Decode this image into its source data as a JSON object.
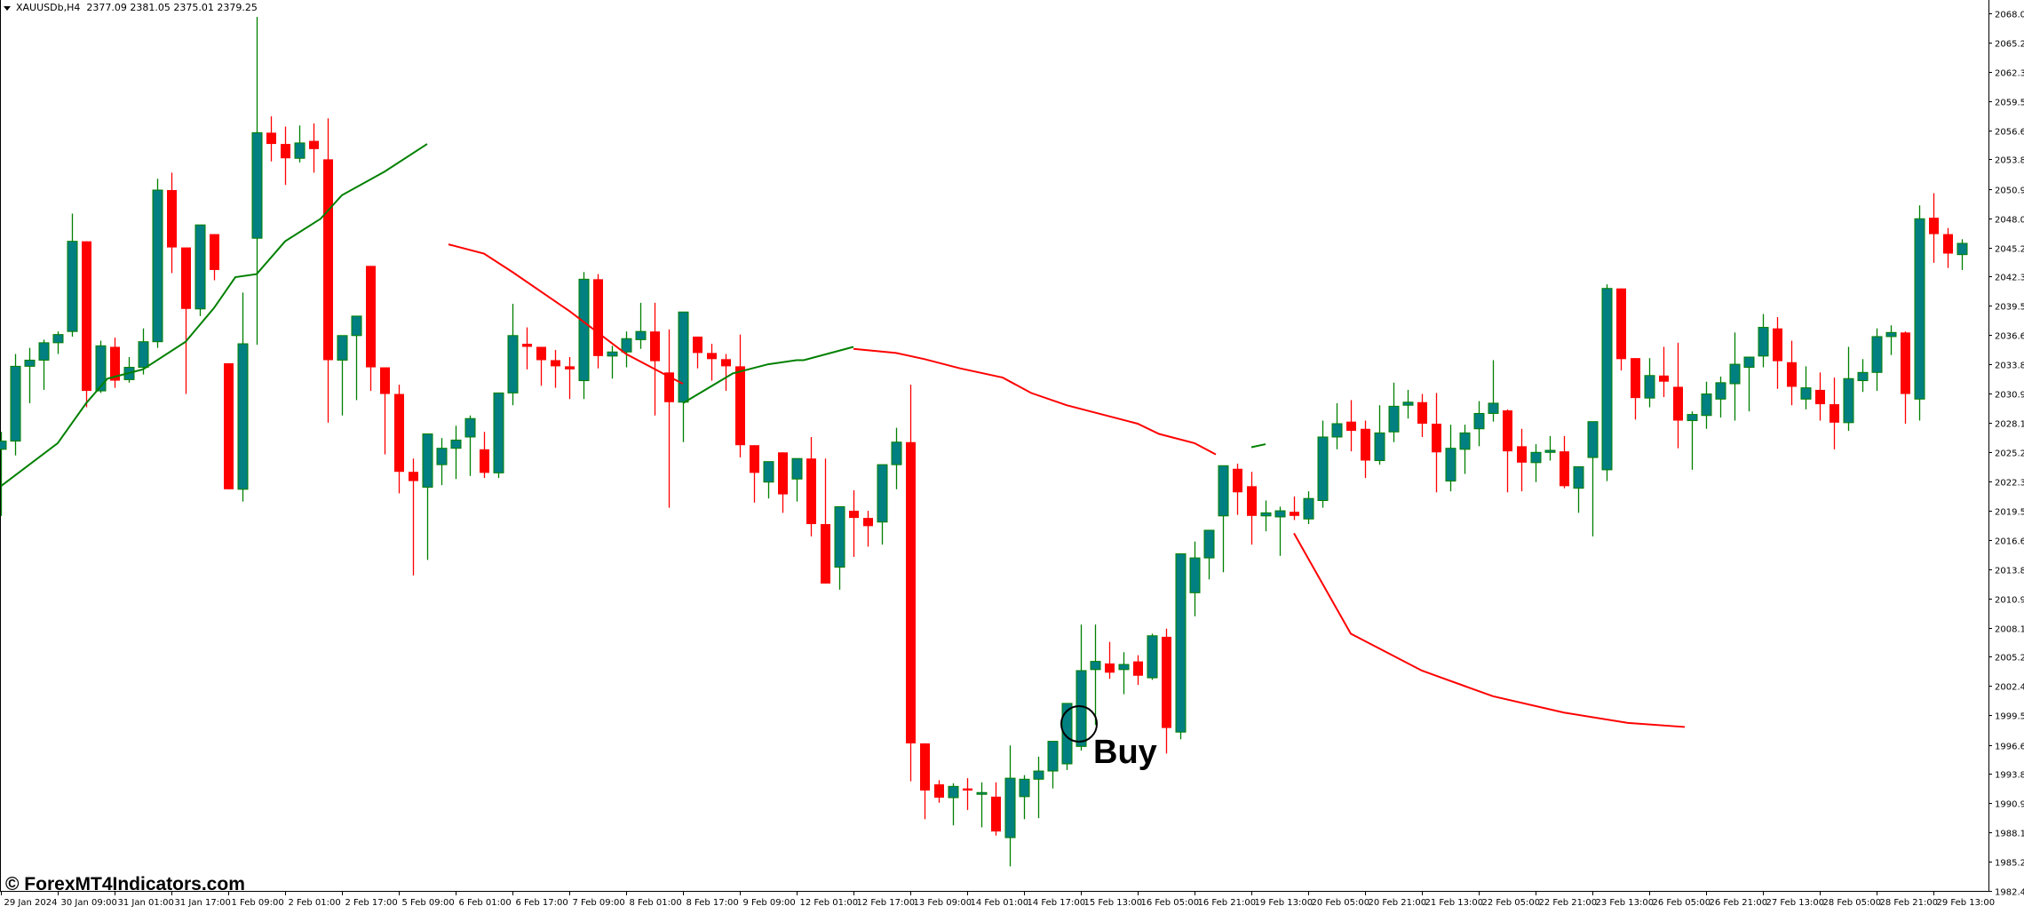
{
  "header": {
    "symbol": "XAUUSDb,H4",
    "ohlc": "2377.09 2381.05 2375.01 2379.25"
  },
  "watermark": "© ForexMT4Indicators.com",
  "annotation": {
    "label": "Buy",
    "circle_candle_index": 76
  },
  "colors": {
    "bull_body": "#008080",
    "bull_outline": "#008000",
    "bear": "#ff0000",
    "ma_up": "#008000",
    "ma_down": "#ff0000",
    "axis": "#000000",
    "background": "#ffffff"
  },
  "chart_data": {
    "type": "candlestick",
    "title": "XAUUSDb,H4",
    "xlabel": "",
    "ylabel": "",
    "ylim": [
      1982.4,
      2068.05
    ],
    "y_ticks": [
      "2068.05",
      "2065.20",
      "2062.35",
      "2059.50",
      "2056.65",
      "2053.80",
      "2050.90",
      "2048.05",
      "2045.20",
      "2042.35",
      "2039.50",
      "2036.65",
      "2033.80",
      "2030.95",
      "2028.10",
      "2025.25",
      "2022.35",
      "2019.50",
      "2016.65",
      "2013.80",
      "2010.95",
      "2008.10",
      "2005.25",
      "2002.40",
      "1999.55",
      "1996.65",
      "1993.80",
      "1990.95",
      "1988.10",
      "1985.25",
      "1982.40"
    ],
    "x_ticks": [
      "29 Jan 2024",
      "30 Jan 09:00",
      "31 Jan 01:00",
      "31 Jan 17:00",
      "1 Feb 09:00",
      "2 Feb 01:00",
      "2 Feb 17:00",
      "5 Feb 09:00",
      "6 Feb 01:00",
      "6 Feb 17:00",
      "7 Feb 09:00",
      "8 Feb 01:00",
      "8 Feb 17:00",
      "9 Feb 09:00",
      "12 Feb 01:00",
      "12 Feb 17:00",
      "13 Feb 09:00",
      "14 Feb 01:00",
      "14 Feb 17:00",
      "15 Feb 13:00",
      "16 Feb 05:00",
      "16 Feb 21:00",
      "19 Feb 13:00",
      "20 Feb 05:00",
      "20 Feb 21:00",
      "21 Feb 13:00",
      "22 Feb 05:00",
      "22 Feb 21:00",
      "23 Feb 13:00",
      "26 Feb 05:00",
      "26 Feb 21:00",
      "27 Feb 13:00",
      "28 Feb 05:00",
      "28 Feb 21:00",
      "29 Feb 13:00"
    ],
    "x_tick_positions": [
      0,
      8,
      16,
      24,
      32,
      40,
      48,
      56,
      64,
      72,
      80,
      88,
      96,
      104,
      112,
      120,
      128,
      136,
      144,
      152,
      160,
      168,
      176,
      184,
      192,
      200,
      208,
      216,
      224,
      232,
      240,
      248,
      256,
      264,
      272
    ],
    "legend": [],
    "grid": false,
    "candles_ohlc": [
      [
        2025.5,
        2027.2,
        2019.0,
        2026.3
      ],
      [
        2026.3,
        2034.8,
        2024.9,
        2033.6
      ],
      [
        2033.6,
        2035.4,
        2030.0,
        2034.2
      ],
      [
        2034.2,
        2036.2,
        2031.3,
        2035.9
      ],
      [
        2035.9,
        2037.0,
        2034.8,
        2036.7
      ],
      [
        2037.0,
        2048.5,
        2036.5,
        2045.8
      ],
      [
        2045.8,
        2045.5,
        2029.6,
        2031.2
      ],
      [
        2031.2,
        2036.1,
        2031.0,
        2035.6
      ],
      [
        2035.5,
        2036.4,
        2031.5,
        2032.2
      ],
      [
        2032.3,
        2034.5,
        2032.0,
        2033.5
      ],
      [
        2033.5,
        2037.3,
        2032.8,
        2036.0
      ],
      [
        2036.0,
        2051.9,
        2035.4,
        2050.8
      ],
      [
        2050.8,
        2052.5,
        2042.7,
        2045.2
      ],
      [
        2045.2,
        2044.4,
        2030.9,
        2039.2
      ],
      [
        2039.2,
        2046.5,
        2038.5,
        2047.4
      ],
      [
        2046.5,
        2044.9,
        2042.0,
        2043.0
      ],
      [
        2033.9,
        2033.5,
        2022.7,
        2021.6
      ],
      [
        2021.6,
        2040.8,
        2020.4,
        2035.8
      ],
      [
        2046.1,
        2067.7,
        2035.7,
        2056.4
      ],
      [
        2056.4,
        2058.0,
        2053.6,
        2055.3
      ],
      [
        2055.3,
        2057.0,
        2051.3,
        2053.9
      ],
      [
        2053.9,
        2057.1,
        2053.5,
        2055.4
      ],
      [
        2055.6,
        2057.3,
        2052.5,
        2054.8
      ],
      [
        2053.8,
        2057.8,
        2028.1,
        2034.2
      ],
      [
        2034.2,
        2035.1,
        2028.8,
        2036.6
      ],
      [
        2036.6,
        2037.6,
        2030.3,
        2038.5
      ],
      [
        2043.4,
        2042.6,
        2031.2,
        2033.5
      ],
      [
        2033.5,
        2033.5,
        2025.0,
        2030.9
      ],
      [
        2030.9,
        2031.8,
        2021.2,
        2023.3
      ],
      [
        2023.3,
        2024.6,
        2013.2,
        2022.4
      ],
      [
        2021.8,
        2023.8,
        2014.7,
        2027.0
      ],
      [
        2024.0,
        2026.6,
        2022.0,
        2025.6
      ],
      [
        2025.6,
        2027.8,
        2022.6,
        2026.4
      ],
      [
        2026.7,
        2028.8,
        2022.9,
        2028.5
      ],
      [
        2025.5,
        2027.2,
        2022.7,
        2023.2
      ],
      [
        2023.2,
        2027.3,
        2022.7,
        2031.0
      ],
      [
        2031.0,
        2039.7,
        2029.8,
        2036.6
      ],
      [
        2035.8,
        2037.4,
        2033.3,
        2035.5
      ],
      [
        2035.5,
        2035.2,
        2031.7,
        2034.2
      ],
      [
        2034.2,
        2035.2,
        2031.5,
        2033.6
      ],
      [
        2033.6,
        2034.5,
        2030.4,
        2033.3
      ],
      [
        2032.2,
        2042.8,
        2030.4,
        2042.1
      ],
      [
        2042.1,
        2042.6,
        2033.4,
        2034.6
      ],
      [
        2034.6,
        2035.6,
        2032.4,
        2035.0
      ],
      [
        2035.0,
        2037.0,
        2033.5,
        2036.3
      ],
      [
        2036.2,
        2039.8,
        2035.3,
        2037.0
      ],
      [
        2037.0,
        2039.8,
        2028.8,
        2034.1
      ],
      [
        2033.0,
        2037.2,
        2019.8,
        2030.1
      ],
      [
        2030.1,
        2034.9,
        2026.2,
        2038.9
      ],
      [
        2036.5,
        2036.1,
        2033.4,
        2034.9
      ],
      [
        2034.9,
        2035.8,
        2032.2,
        2034.3
      ],
      [
        2034.3,
        2034.8,
        2031.2,
        2033.6
      ],
      [
        2033.6,
        2036.7,
        2024.7,
        2025.9
      ],
      [
        2025.9,
        2025.8,
        2020.3,
        2023.2
      ],
      [
        2022.3,
        2023.5,
        2020.7,
        2024.3
      ],
      [
        2025.2,
        2025.1,
        2019.3,
        2021.1
      ],
      [
        2022.6,
        2024.1,
        2020.4,
        2024.6
      ],
      [
        2024.6,
        2026.7,
        2017.0,
        2018.2
      ],
      [
        2018.2,
        2024.6,
        2013.6,
        2012.4
      ],
      [
        2014.0,
        2019.7,
        2011.8,
        2019.9
      ],
      [
        2019.5,
        2021.5,
        2015.0,
        2018.8
      ],
      [
        2018.8,
        2019.5,
        2016.0,
        2018.0
      ],
      [
        2018.4,
        2023.0,
        2016.2,
        2024.0
      ],
      [
        2024.0,
        2027.6,
        2021.6,
        2026.2
      ],
      [
        2026.2,
        2031.8,
        1993.1,
        1996.8
      ],
      [
        1996.8,
        1994.7,
        1989.4,
        1992.2
      ],
      [
        1992.8,
        1993.2,
        1991.0,
        1991.5
      ],
      [
        1991.5,
        1992.9,
        1988.8,
        1992.6
      ],
      [
        1992.4,
        1993.4,
        1990.3,
        1992.2
      ],
      [
        1992.0,
        1993.0,
        1988.6,
        1992.0
      ],
      [
        1991.6,
        1993.0,
        1987.8,
        1988.2
      ],
      [
        1987.6,
        1996.6,
        1984.8,
        1993.4
      ],
      [
        1991.6,
        1993.7,
        1989.4,
        1993.3
      ],
      [
        1993.3,
        1995.5,
        1989.5,
        1994.1
      ],
      [
        1994.1,
        1996.2,
        1992.4,
        1997.0
      ],
      [
        1994.8,
        1998.1,
        1994.2,
        2000.7
      ],
      [
        1996.5,
        2008.4,
        1996.1,
        2003.9
      ],
      [
        2004.0,
        2008.4,
        1998.6,
        2004.8
      ],
      [
        2004.6,
        2006.7,
        2003.1,
        2003.7
      ],
      [
        2004.0,
        2005.7,
        2001.6,
        2004.5
      ],
      [
        2004.8,
        2005.4,
        2002.5,
        2003.4
      ],
      [
        2003.2,
        2007.5,
        2003.0,
        2007.3
      ],
      [
        2007.2,
        2008.0,
        1995.8,
        1998.3
      ],
      [
        1997.9,
        2009.1,
        1997.2,
        2015.3
      ],
      [
        2011.5,
        2016.5,
        2009.2,
        2014.9
      ],
      [
        2014.9,
        2015.0,
        2012.8,
        2017.6
      ],
      [
        2019.0,
        2023.7,
        2013.5,
        2023.9
      ],
      [
        2023.6,
        2024.1,
        2019.1,
        2021.3
      ],
      [
        2021.9,
        2023.3,
        2016.2,
        2019.0
      ],
      [
        2019.0,
        2020.5,
        2017.5,
        2019.3
      ],
      [
        2018.9,
        2019.9,
        2015.1,
        2019.5
      ],
      [
        2019.4,
        2020.9,
        2018.6,
        2019.0
      ],
      [
        2018.7,
        2021.4,
        2018.2,
        2020.7
      ],
      [
        2020.5,
        2028.3,
        2019.8,
        2026.7
      ],
      [
        2026.7,
        2030.0,
        2025.5,
        2028.0
      ],
      [
        2028.2,
        2030.3,
        2025.3,
        2027.3
      ],
      [
        2027.5,
        2028.3,
        2022.7,
        2024.4
      ],
      [
        2024.4,
        2029.8,
        2024.0,
        2027.1
      ],
      [
        2027.2,
        2032.0,
        2026.2,
        2029.7
      ],
      [
        2029.8,
        2031.3,
        2028.5,
        2030.1
      ],
      [
        2030.1,
        2030.9,
        2026.7,
        2028.0
      ],
      [
        2028.0,
        2031.0,
        2021.3,
        2025.2
      ],
      [
        2022.4,
        2027.9,
        2021.4,
        2025.6
      ],
      [
        2025.5,
        2027.9,
        2023.1,
        2027.1
      ],
      [
        2027.5,
        2030.2,
        2025.8,
        2029.0
      ],
      [
        2029.0,
        2034.2,
        2028.2,
        2030.0
      ],
      [
        2029.3,
        2029.4,
        2021.3,
        2025.3
      ],
      [
        2025.8,
        2027.5,
        2021.4,
        2024.2
      ],
      [
        2024.2,
        2026.0,
        2022.3,
        2025.2
      ],
      [
        2025.2,
        2026.8,
        2024.4,
        2025.4
      ],
      [
        2025.3,
        2026.8,
        2021.7,
        2021.9
      ],
      [
        2021.7,
        2022.9,
        2019.3,
        2023.8
      ],
      [
        2024.7,
        2025.3,
        2017.0,
        2028.2
      ],
      [
        2023.5,
        2041.6,
        2022.4,
        2041.2
      ],
      [
        2041.2,
        2041.2,
        2033.2,
        2034.3
      ],
      [
        2034.4,
        2033.9,
        2028.4,
        2030.5
      ],
      [
        2030.5,
        2034.4,
        2029.6,
        2032.7
      ],
      [
        2032.7,
        2035.5,
        2030.6,
        2032.1
      ],
      [
        2031.6,
        2035.9,
        2025.6,
        2028.3
      ],
      [
        2028.3,
        2029.2,
        2023.5,
        2028.9
      ],
      [
        2028.8,
        2032.1,
        2027.5,
        2030.9
      ],
      [
        2030.4,
        2032.6,
        2028.6,
        2032.0
      ],
      [
        2031.9,
        2036.9,
        2028.3,
        2033.8
      ],
      [
        2033.5,
        2034.2,
        2029.2,
        2034.5
      ],
      [
        2034.6,
        2038.7,
        2033.5,
        2037.4
      ],
      [
        2037.3,
        2038.4,
        2031.4,
        2034.1
      ],
      [
        2034.0,
        2036.1,
        2029.8,
        2031.6
      ],
      [
        2030.4,
        2033.6,
        2029.4,
        2031.5
      ],
      [
        2031.3,
        2033.0,
        2028.3,
        2029.9
      ],
      [
        2029.9,
        2032.5,
        2025.5,
        2028.1
      ],
      [
        2028.1,
        2035.5,
        2027.3,
        2032.4
      ],
      [
        2032.2,
        2034.3,
        2031.1,
        2033.0
      ],
      [
        2033.0,
        2037.3,
        2031.2,
        2036.5
      ],
      [
        2036.5,
        2037.6,
        2034.7,
        2036.9
      ],
      [
        2036.9,
        2037.0,
        2028.0,
        2030.9
      ],
      [
        2030.4,
        2049.3,
        2028.3,
        2048.0
      ],
      [
        2048.1,
        2050.5,
        2043.7,
        2046.5
      ],
      [
        2046.5,
        2047.1,
        2043.2,
        2044.6
      ],
      [
        2044.5,
        2046.0,
        2043.0,
        2045.6
      ]
    ],
    "moving_average_segments": [
      {
        "color": "#008000",
        "points": [
          [
            0,
            2021.9
          ],
          [
            8,
            2026.1
          ],
          [
            12,
            2030.0
          ],
          [
            15,
            2032.4
          ],
          [
            20,
            2033.3
          ],
          [
            26,
            2036.0
          ],
          [
            30,
            2039.3
          ],
          [
            33,
            2042.3
          ],
          [
            36,
            2042.6
          ],
          [
            40,
            2045.8
          ],
          [
            45,
            2048.0
          ],
          [
            48,
            2050.3
          ],
          [
            54,
            2052.6
          ],
          [
            60,
            2055.3
          ]
        ]
      },
      {
        "color": "#ff0000",
        "points": [
          [
            63,
            2045.5
          ],
          [
            68,
            2044.6
          ],
          [
            72,
            2042.8
          ],
          [
            80,
            2039.0
          ],
          [
            88,
            2034.8
          ],
          [
            94,
            2032.6
          ],
          [
            96,
            2031.9
          ]
        ]
      },
      {
        "color": "#008000",
        "points": [
          [
            96,
            2030.0
          ],
          [
            103,
            2032.9
          ],
          [
            108,
            2033.8
          ],
          [
            112,
            2034.2
          ],
          [
            113,
            2034.2
          ],
          [
            120,
            2035.5
          ]
        ]
      },
      {
        "color": "#ff0000",
        "points": [
          [
            120,
            2035.3
          ],
          [
            126,
            2034.9
          ],
          [
            130,
            2034.3
          ],
          [
            135,
            2033.4
          ],
          [
            141,
            2032.5
          ],
          [
            145,
            2031.0
          ],
          [
            150,
            2029.8
          ],
          [
            160,
            2028.0
          ],
          [
            163,
            2027.0
          ],
          [
            168,
            2026.1
          ],
          [
            171,
            2025.0
          ]
        ]
      },
      {
        "color": "#008000",
        "points": [
          [
            176,
            2025.7
          ],
          [
            178,
            2026.0
          ]
        ]
      },
      {
        "color": "#ff0000",
        "points": [
          [
            182,
            2017.3
          ],
          [
            190,
            2007.5
          ],
          [
            200,
            2003.9
          ],
          [
            210,
            2001.4
          ],
          [
            220,
            1999.8
          ],
          [
            229,
            1998.8
          ],
          [
            237,
            1998.4
          ]
        ]
      }
    ]
  }
}
